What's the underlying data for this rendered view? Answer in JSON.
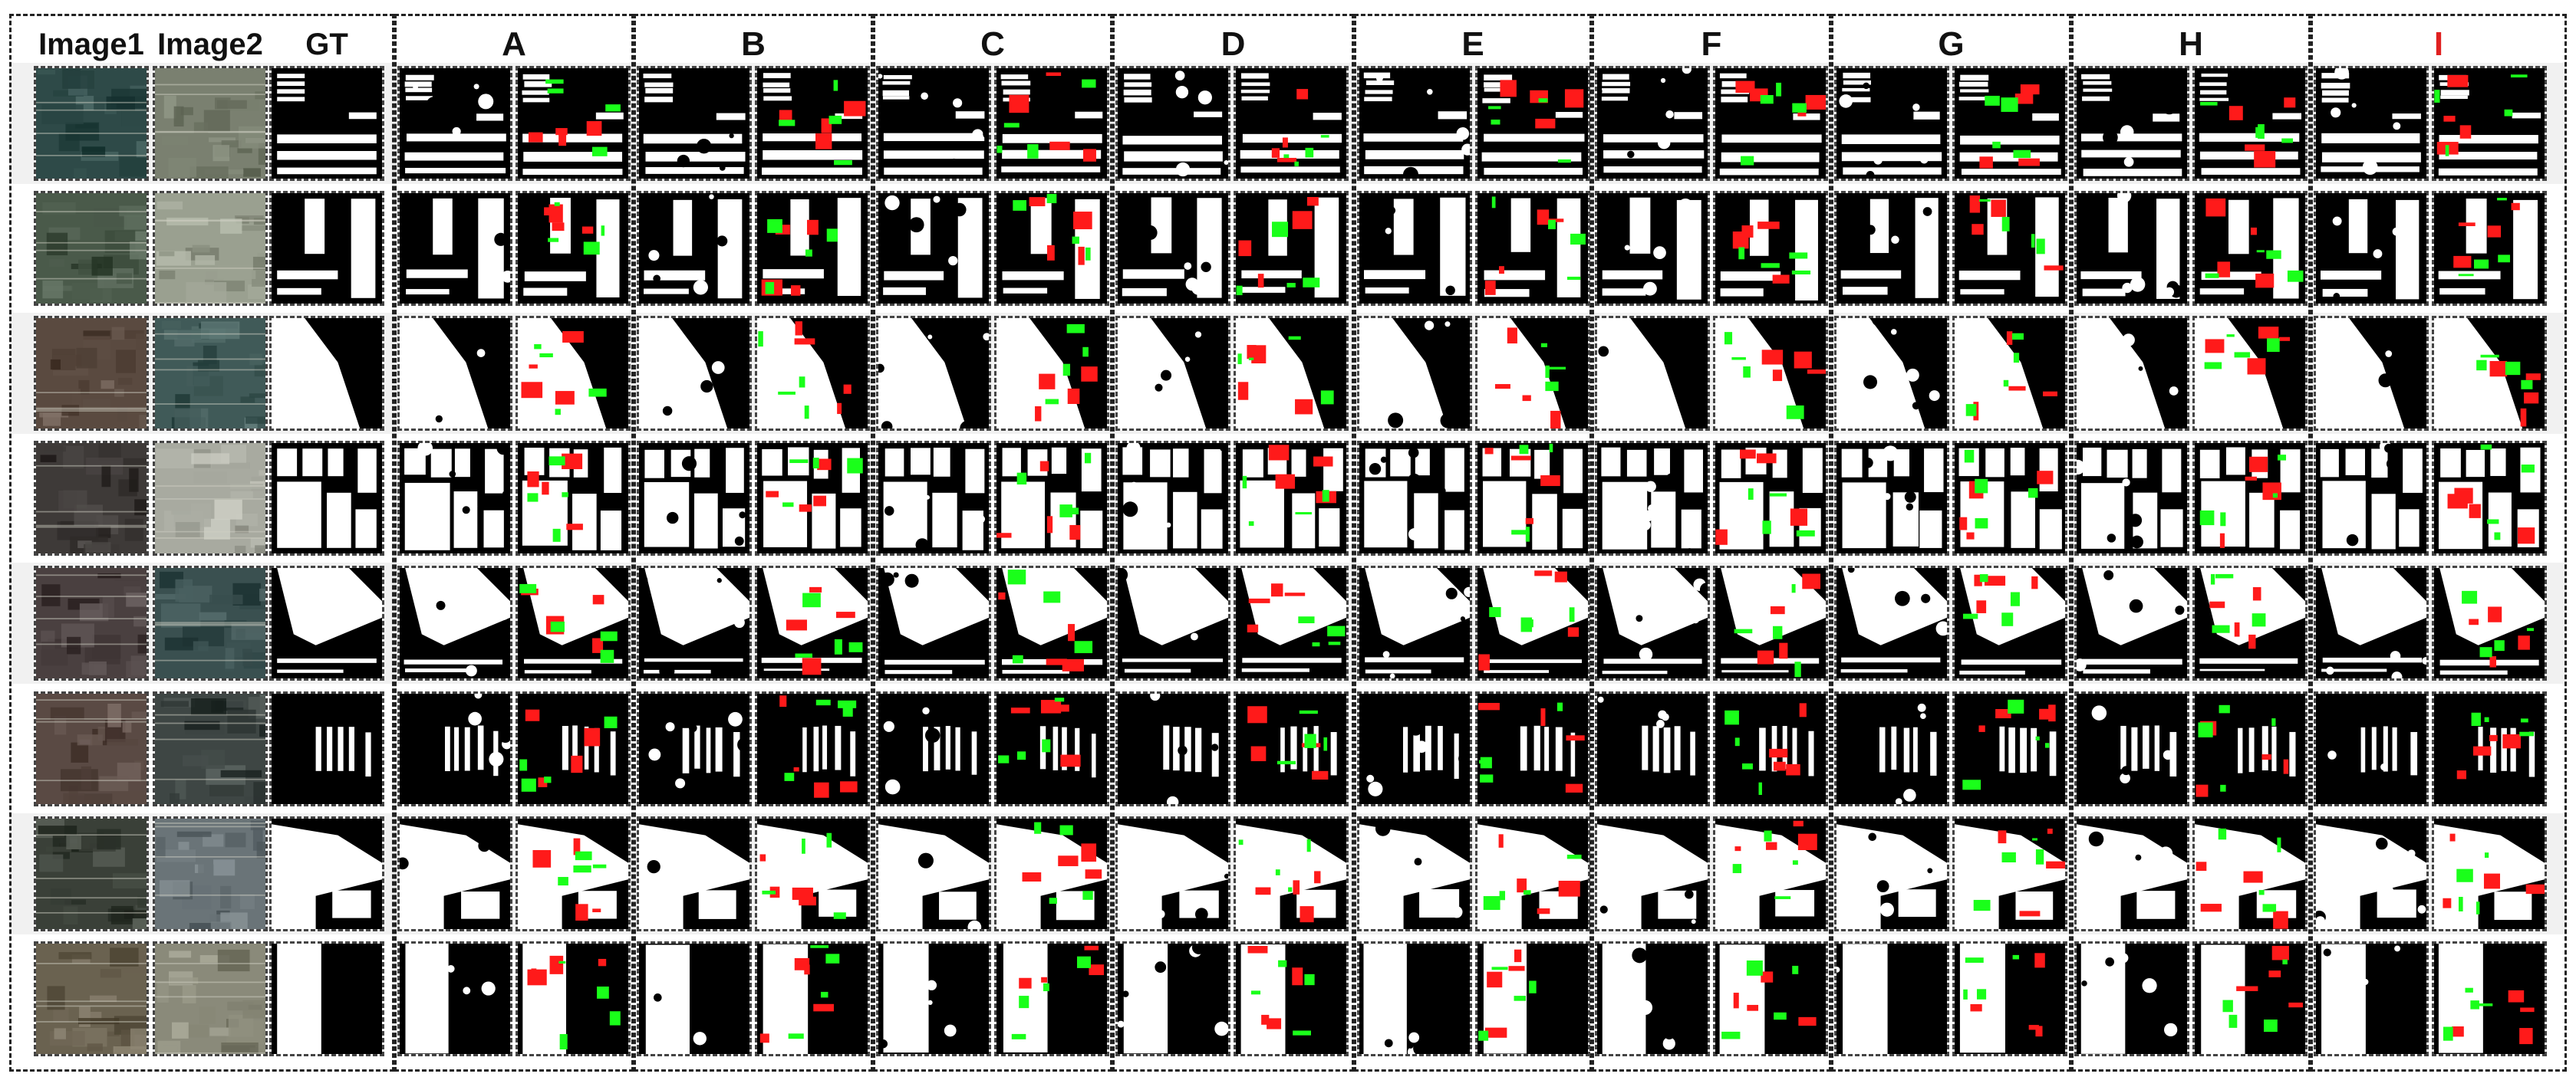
{
  "figure": {
    "input_headers": [
      "Image1",
      "Image2",
      "GT"
    ],
    "method_headers": [
      "A",
      "B",
      "C",
      "D",
      "E",
      "F",
      "G",
      "H",
      "I"
    ],
    "highlighted_method": "I",
    "row_count": 8,
    "colors": {
      "unchanged_background": "#000000",
      "changed_foreground": "#ffffff",
      "false_positive": "#ff1a1a",
      "false_negative": "#1aff1a",
      "header_highlight": "#e02020"
    }
  }
}
